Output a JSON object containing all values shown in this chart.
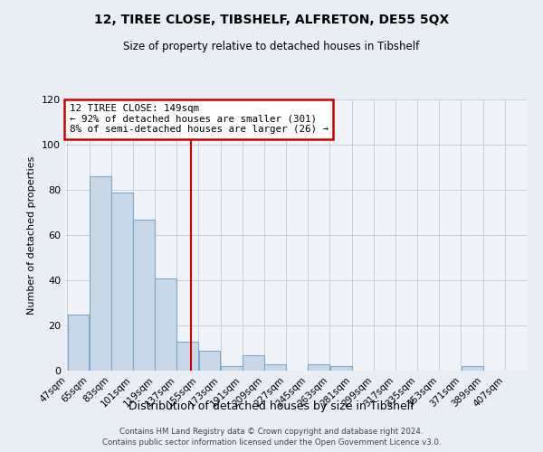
{
  "title": "12, TIREE CLOSE, TIBSHELF, ALFRETON, DE55 5QX",
  "subtitle": "Size of property relative to detached houses in Tibshelf",
  "xlabel": "Distribution of detached houses by size in Tibshelf",
  "ylabel": "Number of detached properties",
  "bar_values": [
    25,
    86,
    79,
    67,
    41,
    13,
    9,
    2,
    7,
    3,
    0,
    3,
    2,
    0,
    0,
    0,
    0,
    0,
    2,
    0
  ],
  "bin_starts": [
    47,
    65,
    83,
    101,
    119,
    137,
    155,
    173,
    191,
    209,
    227,
    245,
    263,
    281,
    299,
    317,
    335,
    353,
    371,
    389
  ],
  "bin_width": 18,
  "tick_labels": [
    "47sqm",
    "65sqm",
    "83sqm",
    "101sqm",
    "119sqm",
    "137sqm",
    "155sqm",
    "173sqm",
    "191sqm",
    "209sqm",
    "227sqm",
    "245sqm",
    "263sqm",
    "281sqm",
    "299sqm",
    "317sqm",
    "335sqm",
    "353sqm",
    "371sqm",
    "389sqm",
    "407sqm"
  ],
  "bar_color": "#c8d8e8",
  "bar_edge_color": "#7aaac8",
  "property_line_x": 149,
  "property_line_color": "#cc0000",
  "ylim": [
    0,
    120
  ],
  "yticks": [
    0,
    20,
    40,
    60,
    80,
    100,
    120
  ],
  "annotation_title": "12 TIREE CLOSE: 149sqm",
  "annotation_line1": "← 92% of detached houses are smaller (301)",
  "annotation_line2": "8% of semi-detached houses are larger (26) →",
  "annotation_box_color": "#cc0000",
  "footnote1": "Contains HM Land Registry data © Crown copyright and database right 2024.",
  "footnote2": "Contains public sector information licensed under the Open Government Licence v3.0.",
  "bg_color": "#e8eef4",
  "plot_bg_color": "#f0f4f8",
  "grid_color": "#c8d0dc"
}
